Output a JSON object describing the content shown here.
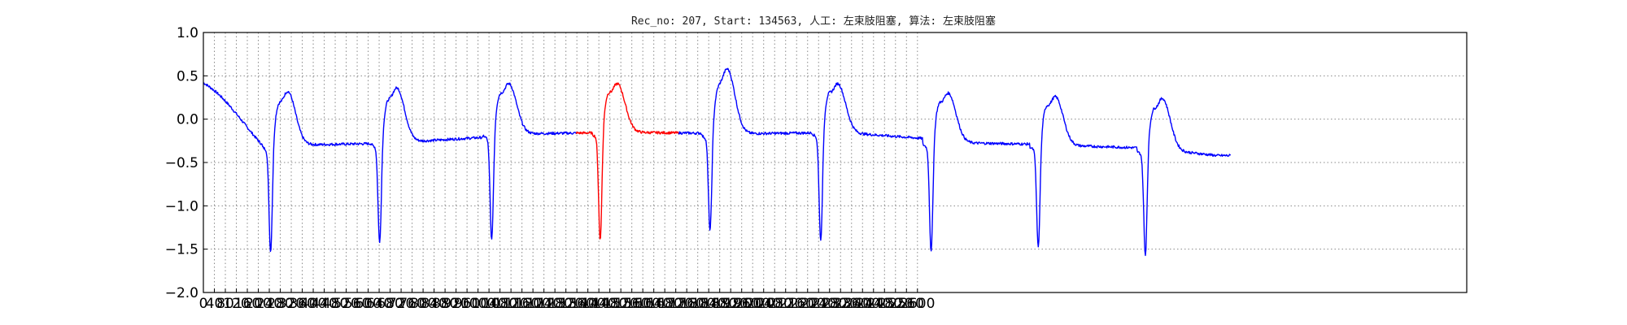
{
  "chart_data": {
    "type": "line",
    "title": "Rec_no: 207, Start: 134563, 人工: 左束肢阻塞, 算法: 左束肢阻塞",
    "xlabel": "",
    "ylabel": "",
    "xlim": [
      0,
      4600
    ],
    "ylim": [
      -2.0,
      1.0
    ],
    "grid": true,
    "y_ticks": [
      "1.0",
      "0.5",
      "0.0",
      "−0.5",
      "−1.0",
      "−1.5",
      "−2.0"
    ],
    "y_tick_values": [
      1.0,
      0.5,
      0.0,
      -0.5,
      -1.0,
      -1.5,
      -2.0
    ],
    "x_tick_step": 40,
    "x_tick_max": 2600,
    "colors": {
      "normal": "#0000ff",
      "highlight": "#ff0000",
      "grid": "#888888"
    },
    "highlight_range": [
      1360,
      1730
    ],
    "beats": [
      {
        "r_time": 245,
        "r_min": -1.58,
        "t_peak": 0.27,
        "st": -0.3
      },
      {
        "r_time": 642,
        "r_min": -1.48,
        "t_peak": 0.31,
        "st": -0.27
      },
      {
        "r_time": 1050,
        "r_min": -1.44,
        "t_peak": 0.36,
        "st": -0.17
      },
      {
        "r_time": 1445,
        "r_min": -1.44,
        "t_peak": 0.36,
        "st": -0.15
      },
      {
        "r_time": 1845,
        "r_min": -1.35,
        "t_peak": 0.53,
        "st": -0.17
      },
      {
        "r_time": 2248,
        "r_min": -1.45,
        "t_peak": 0.36,
        "st": -0.15
      },
      {
        "r_time": 2650,
        "r_min": -1.58,
        "t_peak": 0.25,
        "st": -0.27
      },
      {
        "r_time": 3040,
        "r_min": -1.53,
        "t_peak": 0.21,
        "st": -0.3
      },
      {
        "r_time": 3430,
        "r_min": -1.62,
        "t_peak": 0.19,
        "st": -0.35
      }
    ],
    "signal_end": 3740,
    "signal_end_value": -0.42
  }
}
